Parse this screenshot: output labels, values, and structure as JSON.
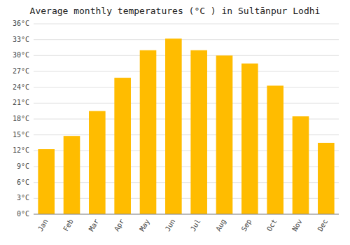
{
  "chart_data": {
    "type": "bar",
    "title": "Average monthly temperatures (°C ) in Sultānpur Lodhi",
    "categories": [
      "Jan",
      "Feb",
      "Mar",
      "Apr",
      "May",
      "Jun",
      "Jul",
      "Aug",
      "Sep",
      "Oct",
      "Nov",
      "Dec"
    ],
    "values": [
      12.3,
      14.8,
      19.5,
      25.8,
      31.0,
      33.2,
      31.0,
      30.0,
      28.5,
      24.3,
      18.5,
      13.5
    ],
    "color": "#FFBC00",
    "ylim": [
      0,
      36
    ],
    "yticks": [
      {
        "value": 0,
        "label": "0°C"
      },
      {
        "value": 3,
        "label": "3°C"
      },
      {
        "value": 6,
        "label": "6°C"
      },
      {
        "value": 9,
        "label": "9°C"
      },
      {
        "value": 12,
        "label": "12°C"
      },
      {
        "value": 15,
        "label": "15°C"
      },
      {
        "value": 18,
        "label": "18°C"
      },
      {
        "value": 21,
        "label": "21°C"
      },
      {
        "value": 24,
        "label": "24°C"
      },
      {
        "value": 27,
        "label": "27°C"
      },
      {
        "value": 30,
        "label": "30°C"
      },
      {
        "value": 33,
        "label": "33°C"
      },
      {
        "value": 36,
        "label": "36°C"
      }
    ],
    "grid": true
  }
}
